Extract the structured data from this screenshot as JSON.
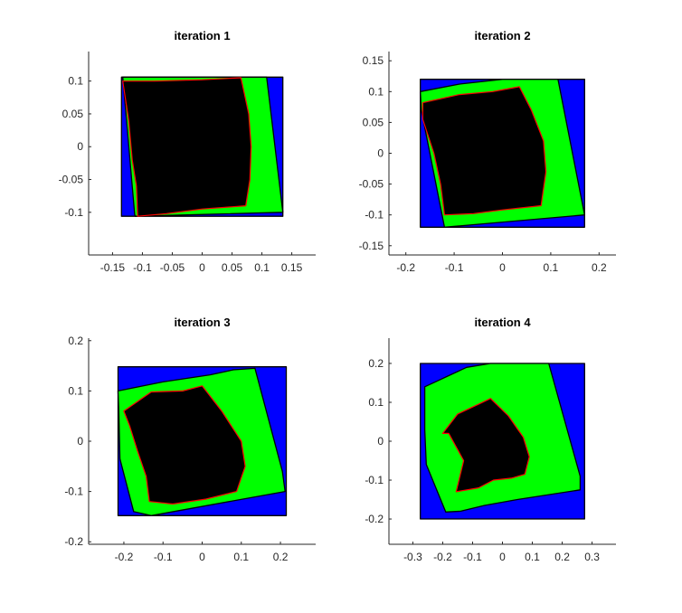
{
  "figure": {
    "background": "#ffffff",
    "colors": {
      "outer_region": "#0000ff",
      "middle_region": "#00ff00",
      "inner_region": "#000000",
      "inner_outline": "#ff0000",
      "region_edge": "#000000"
    }
  },
  "chart_data": [
    {
      "type": "area",
      "title": "iteration 1",
      "xlabel": "",
      "ylabel": "",
      "xlim": [
        -0.19,
        0.19
      ],
      "ylim": [
        -0.165,
        0.145
      ],
      "xticks": [
        -0.15,
        -0.1,
        -0.05,
        0,
        0.05,
        0.1,
        0.15
      ],
      "xtick_labels": [
        "-0.15",
        "-0.1",
        "-0.05",
        "0",
        "0.05",
        "0.1",
        "0.15"
      ],
      "yticks": [
        -0.1,
        -0.05,
        0,
        0.05,
        0.1
      ],
      "ytick_labels": [
        "-0.1",
        "-0.05",
        "0",
        "0.05",
        "0.1"
      ],
      "grid": false,
      "regions": [
        {
          "role": "outer",
          "points": [
            [
              -0.135,
              0.106
            ],
            [
              0.135,
              0.106
            ],
            [
              0.135,
              -0.106
            ],
            [
              -0.135,
              -0.106
            ]
          ]
        },
        {
          "role": "middle",
          "points": [
            [
              -0.133,
              0.106
            ],
            [
              0.108,
              0.106
            ],
            [
              0.135,
              -0.1
            ],
            [
              -0.112,
              -0.106
            ],
            [
              -0.113,
              -0.103
            ]
          ]
        },
        {
          "role": "inner",
          "points": [
            [
              -0.133,
              0.1
            ],
            [
              -0.08,
              0.1
            ],
            [
              0.0,
              0.102
            ],
            [
              0.065,
              0.105
            ],
            [
              0.078,
              0.05
            ],
            [
              0.082,
              0.0
            ],
            [
              0.08,
              -0.05
            ],
            [
              0.073,
              -0.09
            ],
            [
              0.0,
              -0.095
            ],
            [
              -0.06,
              -0.102
            ],
            [
              -0.108,
              -0.106
            ],
            [
              -0.11,
              -0.06
            ],
            [
              -0.117,
              -0.02
            ],
            [
              -0.123,
              0.04
            ]
          ]
        }
      ]
    },
    {
      "type": "area",
      "title": "iteration 2",
      "xlabel": "",
      "ylabel": "",
      "xlim": [
        -0.235,
        0.235
      ],
      "ylim": [
        -0.165,
        0.165
      ],
      "xticks": [
        -0.2,
        -0.1,
        0,
        0.1,
        0.2
      ],
      "xtick_labels": [
        "-0.2",
        "-0.1",
        "0",
        "0.1",
        "0.2"
      ],
      "yticks": [
        -0.15,
        -0.1,
        -0.05,
        0,
        0.05,
        0.1,
        0.15
      ],
      "ytick_labels": [
        "-0.15",
        "-0.1",
        "-0.05",
        "0",
        "0.05",
        "0.1",
        "0.15"
      ],
      "grid": false,
      "regions": [
        {
          "role": "outer",
          "points": [
            [
              -0.17,
              0.12
            ],
            [
              0.17,
              0.12
            ],
            [
              0.17,
              -0.12
            ],
            [
              -0.17,
              -0.12
            ]
          ]
        },
        {
          "role": "middle",
          "points": [
            [
              -0.17,
              0.1
            ],
            [
              -0.09,
              0.112
            ],
            [
              0.0,
              0.12
            ],
            [
              0.115,
              0.12
            ],
            [
              0.17,
              -0.1
            ],
            [
              -0.12,
              -0.12
            ],
            [
              -0.168,
              0.07
            ]
          ]
        },
        {
          "role": "inner",
          "points": [
            [
              -0.165,
              0.082
            ],
            [
              -0.09,
              0.095
            ],
            [
              -0.02,
              0.1
            ],
            [
              0.035,
              0.108
            ],
            [
              0.06,
              0.07
            ],
            [
              0.085,
              0.02
            ],
            [
              0.09,
              -0.03
            ],
            [
              0.08,
              -0.085
            ],
            [
              0.0,
              -0.092
            ],
            [
              -0.06,
              -0.098
            ],
            [
              -0.12,
              -0.1
            ],
            [
              -0.128,
              -0.05
            ],
            [
              -0.142,
              0.0
            ],
            [
              -0.165,
              0.055
            ]
          ]
        }
      ]
    },
    {
      "type": "area",
      "title": "iteration 3",
      "xlabel": "",
      "ylabel": "",
      "xlim": [
        -0.29,
        0.29
      ],
      "ylim": [
        -0.205,
        0.205
      ],
      "xticks": [
        -0.2,
        -0.1,
        0,
        0.1,
        0.2
      ],
      "xtick_labels": [
        "-0.2",
        "-0.1",
        "0",
        "0.1",
        "0.2"
      ],
      "yticks": [
        -0.2,
        -0.1,
        0,
        0.1,
        0.2
      ],
      "ytick_labels": [
        "-0.2",
        "-0.1",
        "0",
        "0.1",
        "0.2"
      ],
      "grid": false,
      "regions": [
        {
          "role": "outer",
          "points": [
            [
              -0.215,
              0.148
            ],
            [
              0.215,
              0.148
            ],
            [
              0.215,
              -0.148
            ],
            [
              -0.215,
              -0.148
            ]
          ]
        },
        {
          "role": "middle",
          "points": [
            [
              -0.215,
              0.1
            ],
            [
              -0.1,
              0.118
            ],
            [
              0.02,
              0.132
            ],
            [
              0.08,
              0.142
            ],
            [
              0.135,
              0.145
            ],
            [
              0.205,
              -0.06
            ],
            [
              0.212,
              -0.1
            ],
            [
              -0.13,
              -0.148
            ],
            [
              -0.175,
              -0.14
            ],
            [
              -0.21,
              -0.035
            ],
            [
              -0.213,
              0.06
            ]
          ]
        },
        {
          "role": "inner",
          "points": [
            [
              -0.2,
              0.06
            ],
            [
              -0.13,
              0.098
            ],
            [
              -0.05,
              0.1
            ],
            [
              0.0,
              0.11
            ],
            [
              0.05,
              0.06
            ],
            [
              0.1,
              0.0
            ],
            [
              0.11,
              -0.05
            ],
            [
              0.088,
              -0.1
            ],
            [
              0.01,
              -0.115
            ],
            [
              -0.075,
              -0.125
            ],
            [
              -0.135,
              -0.12
            ],
            [
              -0.143,
              -0.07
            ],
            [
              -0.165,
              -0.02
            ],
            [
              -0.185,
              0.03
            ]
          ]
        }
      ]
    },
    {
      "type": "area",
      "title": "iteration 4",
      "xlabel": "",
      "ylabel": "",
      "xlim": [
        -0.38,
        0.38
      ],
      "ylim": [
        -0.265,
        0.265
      ],
      "xticks": [
        -0.3,
        -0.2,
        -0.1,
        0,
        0.1,
        0.2,
        0.3
      ],
      "xtick_labels": [
        "-0.3",
        "-0.2",
        "-0.1",
        "0",
        "0.1",
        "0.2",
        "0.3"
      ],
      "yticks": [
        -0.2,
        -0.1,
        0,
        0.1,
        0.2
      ],
      "ytick_labels": [
        "-0.2",
        "-0.1",
        "0",
        "0.1",
        "0.2"
      ],
      "grid": false,
      "regions": [
        {
          "role": "outer",
          "points": [
            [
              -0.275,
              0.2
            ],
            [
              0.275,
              0.2
            ],
            [
              0.275,
              -0.2
            ],
            [
              -0.275,
              -0.2
            ]
          ]
        },
        {
          "role": "middle",
          "points": [
            [
              -0.26,
              0.14
            ],
            [
              -0.12,
              0.19
            ],
            [
              -0.04,
              0.2
            ],
            [
              0.155,
              0.2
            ],
            [
              0.26,
              -0.09
            ],
            [
              0.26,
              -0.125
            ],
            [
              0.05,
              -0.15
            ],
            [
              -0.06,
              -0.165
            ],
            [
              -0.14,
              -0.18
            ],
            [
              -0.19,
              -0.182
            ],
            [
              -0.255,
              -0.06
            ],
            [
              -0.26,
              0.03
            ]
          ]
        },
        {
          "role": "inner",
          "points": [
            [
              -0.2,
              0.02
            ],
            [
              -0.15,
              0.07
            ],
            [
              -0.08,
              0.095
            ],
            [
              -0.04,
              0.11
            ],
            [
              0.02,
              0.065
            ],
            [
              0.07,
              0.01
            ],
            [
              0.09,
              -0.04
            ],
            [
              0.075,
              -0.085
            ],
            [
              0.03,
              -0.095
            ],
            [
              -0.03,
              -0.1
            ],
            [
              -0.08,
              -0.12
            ],
            [
              -0.155,
              -0.13
            ],
            [
              -0.13,
              -0.05
            ],
            [
              -0.18,
              0.02
            ]
          ]
        }
      ]
    }
  ]
}
